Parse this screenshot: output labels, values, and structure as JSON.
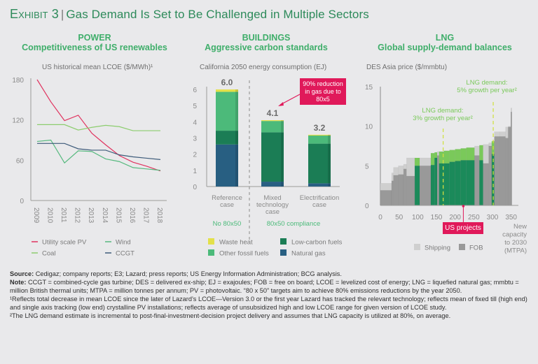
{
  "exhibit": {
    "label": "Exhibit 3",
    "separator": "|",
    "title": "Gas Demand Is Set to Be Challenged in Multiple Sectors"
  },
  "colors": {
    "title_green": "#2d8a5a",
    "head_green": "#3fae6a",
    "callout": "#e0195a"
  },
  "chart_data": [
    {
      "type": "line",
      "section": "POWER",
      "title": "Competitiveness of US renewables",
      "subtitle": "US historical mean LCOE ($/MWh)¹",
      "x": [
        "2009",
        "2010",
        "2011",
        "2012",
        "2013",
        "2014",
        "2015",
        "2016",
        "2017",
        "2018"
      ],
      "ylim": [
        0,
        180
      ],
      "yticks": [
        "0",
        "60",
        "120",
        "180"
      ],
      "series": [
        {
          "name": "Utility scale PV",
          "color": "#e0335f",
          "values": [
            180,
            147,
            119,
            127,
            100,
            83,
            67,
            57,
            51,
            44
          ]
        },
        {
          "name": "Wind",
          "color": "#56b97e",
          "values": [
            88,
            90,
            56,
            74,
            73,
            62,
            58,
            49,
            47,
            45
          ]
        },
        {
          "name": "Coal",
          "color": "#8ccd6e",
          "values": [
            113,
            113,
            113,
            105,
            109,
            112,
            110,
            104,
            104,
            104
          ]
        },
        {
          "name": "CCGT",
          "color": "#3d5b7a",
          "values": [
            85,
            85,
            85,
            77,
            75,
            75,
            68,
            65,
            63,
            61
          ]
        }
      ]
    },
    {
      "type": "bar",
      "section": "BUILDINGS",
      "title": "Aggressive carbon standards",
      "subtitle": "California 2050 energy consumption (EJ)",
      "categories": [
        "Reference case",
        "Mixed technology case",
        "Electrification case"
      ],
      "category_lines": [
        [
          "Reference",
          "case"
        ],
        [
          "Mixed",
          "technology",
          "case"
        ],
        [
          "Electrification",
          "case"
        ]
      ],
      "totals": [
        "6.0",
        "4.1",
        "3.2"
      ],
      "ylim": [
        0,
        6
      ],
      "yticks": [
        "0",
        "1",
        "2",
        "3",
        "4",
        "5",
        "6"
      ],
      "series": [
        {
          "name": "Natural gas",
          "color": "#285f82",
          "values": [
            2.6,
            0.3,
            0.2
          ]
        },
        {
          "name": "Low-carbon fuels",
          "color": "#1b7d55",
          "values": [
            0.85,
            3.05,
            2.45
          ]
        },
        {
          "name": "Other fossil fuels",
          "color": "#4cba7a",
          "values": [
            2.4,
            0.7,
            0.5
          ]
        },
        {
          "name": "Waste heat",
          "color": "#e3e04a",
          "values": [
            0.15,
            0.05,
            0.05
          ]
        }
      ],
      "groups": [
        {
          "label": "No 80x50"
        },
        {
          "label": "80x50 compliance"
        }
      ],
      "annotation": "90% reduction in gas due to 80x5"
    },
    {
      "type": "bar",
      "section": "LNG",
      "title": "Global supply-demand balances",
      "subtitle": "DES Asia price ($/mmbtu)",
      "xlabel": "New capacity to 2030 (MTPA)",
      "xlim": [
        0,
        360
      ],
      "xticks": [
        "0",
        "50",
        "100",
        "150",
        "200",
        "250",
        "300",
        "350"
      ],
      "ylim": [
        0,
        15
      ],
      "yticks": [
        "0",
        "5",
        "10",
        "15"
      ],
      "legend": [
        {
          "name": "Shipping",
          "color": "#cfcfcf"
        },
        {
          "name": "FOB",
          "color": "#999999"
        }
      ],
      "us_colors": {
        "fob": "#1b8a5a",
        "shipping": "#7ac95a"
      },
      "bars": [
        {
          "x0": 0,
          "x1": 30,
          "fob": 1.9,
          "total": 2.8,
          "us": false
        },
        {
          "x0": 30,
          "x1": 35,
          "fob": 3.1,
          "total": 4.1,
          "us": false
        },
        {
          "x0": 35,
          "x1": 48,
          "fob": 3.8,
          "total": 4.8,
          "us": false
        },
        {
          "x0": 48,
          "x1": 62,
          "fob": 3.9,
          "total": 5.0,
          "us": false
        },
        {
          "x0": 62,
          "x1": 70,
          "fob": 4.6,
          "total": 5.2,
          "us": false
        },
        {
          "x0": 70,
          "x1": 92,
          "fob": 3.7,
          "total": 6.0,
          "us": false
        },
        {
          "x0": 92,
          "x1": 105,
          "fob": 5.0,
          "total": 6.0,
          "us": true
        },
        {
          "x0": 105,
          "x1": 135,
          "fob": 5.0,
          "total": 6.0,
          "us": false
        },
        {
          "x0": 135,
          "x1": 145,
          "fob": 5.1,
          "total": 6.6,
          "us": true
        },
        {
          "x0": 145,
          "x1": 152,
          "fob": 6.0,
          "total": 6.7,
          "us": true
        },
        {
          "x0": 152,
          "x1": 157,
          "fob": 6.3,
          "total": 6.8,
          "us": false
        },
        {
          "x0": 157,
          "x1": 170,
          "fob": 5.3,
          "total": 6.8,
          "us": true
        },
        {
          "x0": 170,
          "x1": 185,
          "fob": 5.3,
          "total": 6.9,
          "us": true
        },
        {
          "x0": 185,
          "x1": 200,
          "fob": 5.5,
          "total": 7.0,
          "us": true
        },
        {
          "x0": 200,
          "x1": 215,
          "fob": 5.6,
          "total": 7.1,
          "us": true
        },
        {
          "x0": 215,
          "x1": 230,
          "fob": 5.7,
          "total": 7.2,
          "us": true
        },
        {
          "x0": 230,
          "x1": 252,
          "fob": 5.7,
          "total": 7.3,
          "us": true
        },
        {
          "x0": 252,
          "x1": 265,
          "fob": 6.3,
          "total": 7.5,
          "us": false
        },
        {
          "x0": 265,
          "x1": 275,
          "fob": 5.7,
          "total": 7.6,
          "us": true
        },
        {
          "x0": 275,
          "x1": 290,
          "fob": 5.3,
          "total": 7.7,
          "us": false
        },
        {
          "x0": 290,
          "x1": 298,
          "fob": 7.5,
          "total": 7.9,
          "us": false
        },
        {
          "x0": 298,
          "x1": 305,
          "fob": 6.5,
          "total": 8.1,
          "us": true
        },
        {
          "x0": 305,
          "x1": 320,
          "fob": 8.7,
          "total": 9.3,
          "us": false
        },
        {
          "x0": 320,
          "x1": 335,
          "fob": 8.7,
          "total": 9.3,
          "us": false
        },
        {
          "x0": 335,
          "x1": 342,
          "fob": 8.5,
          "total": 9.9,
          "us": false
        },
        {
          "x0": 342,
          "x1": 349,
          "fob": 9.9,
          "total": 10.0,
          "us": false
        },
        {
          "x0": 349,
          "x1": 352,
          "fob": 11.8,
          "total": 12.3,
          "us": false
        }
      ],
      "demand_lines": [
        {
          "x": 168,
          "label_lines": [
            "LNG demand:",
            "3% growth per year²"
          ]
        },
        {
          "x": 302,
          "label_lines": [
            "LNG demand:",
            "5% growth per year²"
          ]
        }
      ],
      "annotation": {
        "label": "US projects",
        "x": 222
      }
    }
  ],
  "notes": {
    "source_label": "Source:",
    "source_text": " Cedigaz; company reports; E3; Lazard; press reports; US Energy Information Administration; BCG analysis.",
    "note_label": "Note:",
    "note_text": " CCGT = combined-cycle gas turbine; DES = delivered ex-ship; EJ = exajoules; FOB = free on board; LCOE = levelized cost of energy; LNG = liquefied natural gas; mmbtu = million British thermal units; MTPA = million tonnes per annum; PV = photovoltaic. “80 x 50” targets aim to achieve 80% emissions reductions by the year 2050.",
    "footnote1": "¹Reflects total decrease in mean LCOE since the later of Lazard’s LCOE—Version 3.0 or the first year Lazard has tracked the relevant technology; reflects mean of fixed till (high end) and single axis tracking (low end) crystalline PV installations; reflects average of unsubsidized high and low LCOE range for given version of LCOE study.",
    "footnote2": "²The LNG demand estimate is incremental to post-final-investment-decision project delivery and assumes that LNG capacity is utilized at 80%, on average."
  }
}
